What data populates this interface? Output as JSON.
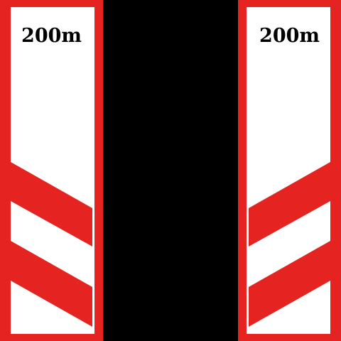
{
  "colors": {
    "background": "#000000",
    "sign_border": "#e52421",
    "sign_face": "#ffffff",
    "stripe": "#e52421",
    "text": "#000000"
  },
  "signs": [
    {
      "name": "left-distance-sign",
      "label": "200m",
      "stripe_count": 2,
      "stripe_direction": "descending-left-to-right"
    },
    {
      "name": "right-distance-sign",
      "label": "200m",
      "stripe_count": 2,
      "stripe_direction": "ascending-left-to-right"
    }
  ]
}
